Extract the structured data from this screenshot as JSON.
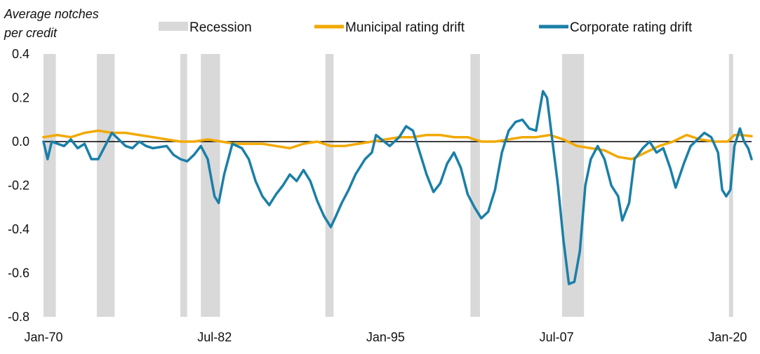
{
  "chart_data": {
    "type": "line",
    "ylabel": [
      "Average notches",
      "per credit"
    ],
    "ylim": [
      -0.8,
      0.4
    ],
    "yticks": [
      0.4,
      0.2,
      0.0,
      -0.2,
      -0.4,
      -0.6,
      -0.8
    ],
    "ytick_labels": [
      "0.4",
      "0.2",
      "0.0",
      "-0.2",
      "-0.4",
      "-0.6",
      "-0.8"
    ],
    "xlim": [
      1970.0,
      2021.75
    ],
    "xticks": [
      1970.0,
      1982.5,
      1995.0,
      2007.5,
      2020.0
    ],
    "xtick_labels": [
      "Jan-70",
      "Jul-82",
      "Jan-95",
      "Jul-07",
      "Jan-20"
    ],
    "zero_line": true,
    "legend": {
      "placement": "top",
      "recession_label": "Recession",
      "municipal_label": "Municipal rating drift",
      "corporate_label": "Corporate rating drift"
    },
    "colors": {
      "recession": "#d9d9d9",
      "municipal": "#f2a900",
      "corporate": "#1a7fa8",
      "zero": "#000000"
    },
    "recessions": [
      [
        1970.0,
        1970.9
      ],
      [
        1973.9,
        1975.2
      ],
      [
        1980.0,
        1980.5
      ],
      [
        1981.5,
        1982.9
      ],
      [
        1990.6,
        1991.2
      ],
      [
        2001.2,
        2001.9
      ],
      [
        2007.9,
        2009.5
      ],
      [
        2020.1,
        2020.4
      ]
    ],
    "series": [
      {
        "name": "Municipal rating drift",
        "color": "#f2a900",
        "points": [
          [
            1970.0,
            0.02
          ],
          [
            1971.0,
            0.03
          ],
          [
            1972.0,
            0.02
          ],
          [
            1973.0,
            0.04
          ],
          [
            1974.0,
            0.05
          ],
          [
            1975.0,
            0.04
          ],
          [
            1976.0,
            0.04
          ],
          [
            1977.0,
            0.03
          ],
          [
            1978.0,
            0.02
          ],
          [
            1979.0,
            0.01
          ],
          [
            1980.0,
            0.0
          ],
          [
            1981.0,
            0.0
          ],
          [
            1982.0,
            0.01
          ],
          [
            1983.0,
            0.0
          ],
          [
            1984.0,
            -0.01
          ],
          [
            1985.0,
            -0.01
          ],
          [
            1986.0,
            -0.01
          ],
          [
            1987.0,
            -0.02
          ],
          [
            1988.0,
            -0.03
          ],
          [
            1989.0,
            -0.01
          ],
          [
            1990.0,
            0.0
          ],
          [
            1991.0,
            -0.02
          ],
          [
            1992.0,
            -0.02
          ],
          [
            1993.0,
            -0.01
          ],
          [
            1994.0,
            0.0
          ],
          [
            1995.0,
            0.01
          ],
          [
            1996.0,
            0.02
          ],
          [
            1997.0,
            0.02
          ],
          [
            1998.0,
            0.03
          ],
          [
            1999.0,
            0.03
          ],
          [
            2000.0,
            0.02
          ],
          [
            2001.0,
            0.02
          ],
          [
            2002.0,
            0.0
          ],
          [
            2003.0,
            0.0
          ],
          [
            2004.0,
            0.01
          ],
          [
            2005.0,
            0.02
          ],
          [
            2006.0,
            0.02
          ],
          [
            2007.0,
            0.03
          ],
          [
            2008.0,
            0.01
          ],
          [
            2009.0,
            -0.02
          ],
          [
            2010.0,
            -0.03
          ],
          [
            2011.0,
            -0.04
          ],
          [
            2012.0,
            -0.07
          ],
          [
            2013.0,
            -0.08
          ],
          [
            2014.0,
            -0.05
          ],
          [
            2015.0,
            -0.02
          ],
          [
            2016.0,
            0.0
          ],
          [
            2017.0,
            0.03
          ],
          [
            2018.0,
            0.01
          ],
          [
            2019.0,
            0.0
          ],
          [
            2020.0,
            0.0
          ],
          [
            2020.5,
            0.03
          ],
          [
            2021.0,
            0.03
          ],
          [
            2021.75,
            0.025
          ]
        ]
      },
      {
        "name": "Corporate rating drift",
        "color": "#1a7fa8",
        "points": [
          [
            1970.0,
            0.0
          ],
          [
            1970.3,
            -0.08
          ],
          [
            1970.6,
            0.0
          ],
          [
            1971.5,
            -0.02
          ],
          [
            1972.0,
            0.01
          ],
          [
            1972.5,
            -0.03
          ],
          [
            1973.0,
            -0.01
          ],
          [
            1973.5,
            -0.08
          ],
          [
            1974.0,
            -0.08
          ],
          [
            1974.5,
            -0.02
          ],
          [
            1975.0,
            0.04
          ],
          [
            1975.5,
            0.01
          ],
          [
            1976.0,
            -0.02
          ],
          [
            1976.5,
            -0.03
          ],
          [
            1977.0,
            0.0
          ],
          [
            1977.5,
            -0.02
          ],
          [
            1978.0,
            -0.03
          ],
          [
            1979.0,
            -0.02
          ],
          [
            1979.5,
            -0.06
          ],
          [
            1980.0,
            -0.08
          ],
          [
            1980.5,
            -0.09
          ],
          [
            1981.0,
            -0.06
          ],
          [
            1981.5,
            -0.02
          ],
          [
            1982.0,
            -0.08
          ],
          [
            1982.5,
            -0.25
          ],
          [
            1982.8,
            -0.28
          ],
          [
            1983.2,
            -0.15
          ],
          [
            1983.8,
            -0.01
          ],
          [
            1984.5,
            -0.03
          ],
          [
            1985.0,
            -0.08
          ],
          [
            1985.5,
            -0.18
          ],
          [
            1986.0,
            -0.25
          ],
          [
            1986.5,
            -0.29
          ],
          [
            1987.0,
            -0.24
          ],
          [
            1987.5,
            -0.2
          ],
          [
            1988.0,
            -0.15
          ],
          [
            1988.5,
            -0.18
          ],
          [
            1989.0,
            -0.13
          ],
          [
            1989.5,
            -0.18
          ],
          [
            1990.0,
            -0.27
          ],
          [
            1990.5,
            -0.34
          ],
          [
            1991.0,
            -0.39
          ],
          [
            1991.3,
            -0.35
          ],
          [
            1991.8,
            -0.28
          ],
          [
            1992.3,
            -0.22
          ],
          [
            1992.8,
            -0.15
          ],
          [
            1993.5,
            -0.08
          ],
          [
            1994.0,
            -0.05
          ],
          [
            1994.3,
            0.03
          ],
          [
            1994.7,
            0.01
          ],
          [
            1995.3,
            -0.02
          ],
          [
            1996.0,
            0.02
          ],
          [
            1996.5,
            0.07
          ],
          [
            1997.0,
            0.05
          ],
          [
            1997.5,
            -0.05
          ],
          [
            1998.0,
            -0.15
          ],
          [
            1998.5,
            -0.23
          ],
          [
            1999.0,
            -0.19
          ],
          [
            1999.5,
            -0.1
          ],
          [
            2000.0,
            -0.05
          ],
          [
            2000.5,
            -0.12
          ],
          [
            2001.0,
            -0.24
          ],
          [
            2001.5,
            -0.3
          ],
          [
            2002.0,
            -0.35
          ],
          [
            2002.5,
            -0.32
          ],
          [
            2003.0,
            -0.22
          ],
          [
            2003.5,
            -0.05
          ],
          [
            2004.0,
            0.05
          ],
          [
            2004.5,
            0.09
          ],
          [
            2005.0,
            0.1
          ],
          [
            2005.5,
            0.06
          ],
          [
            2006.0,
            0.05
          ],
          [
            2006.5,
            0.23
          ],
          [
            2006.8,
            0.2
          ],
          [
            2007.2,
            0.0
          ],
          [
            2007.6,
            -0.2
          ],
          [
            2008.0,
            -0.45
          ],
          [
            2008.4,
            -0.65
          ],
          [
            2008.8,
            -0.64
          ],
          [
            2009.2,
            -0.5
          ],
          [
            2009.6,
            -0.2
          ],
          [
            2010.0,
            -0.08
          ],
          [
            2010.5,
            -0.02
          ],
          [
            2011.0,
            -0.08
          ],
          [
            2011.5,
            -0.2
          ],
          [
            2012.0,
            -0.25
          ],
          [
            2012.3,
            -0.36
          ],
          [
            2012.8,
            -0.28
          ],
          [
            2013.2,
            -0.08
          ],
          [
            2013.8,
            -0.03
          ],
          [
            2014.3,
            0.0
          ],
          [
            2014.8,
            -0.05
          ],
          [
            2015.3,
            -0.03
          ],
          [
            2015.8,
            -0.12
          ],
          [
            2016.2,
            -0.21
          ],
          [
            2016.8,
            -0.1
          ],
          [
            2017.3,
            -0.02
          ],
          [
            2017.8,
            0.01
          ],
          [
            2018.3,
            0.04
          ],
          [
            2018.8,
            0.02
          ],
          [
            2019.3,
            -0.05
          ],
          [
            2019.6,
            -0.22
          ],
          [
            2019.9,
            -0.25
          ],
          [
            2020.2,
            -0.22
          ],
          [
            2020.5,
            -0.02
          ],
          [
            2020.9,
            0.06
          ],
          [
            2021.2,
            0.0
          ],
          [
            2021.5,
            -0.03
          ],
          [
            2021.75,
            -0.08
          ]
        ]
      }
    ]
  }
}
